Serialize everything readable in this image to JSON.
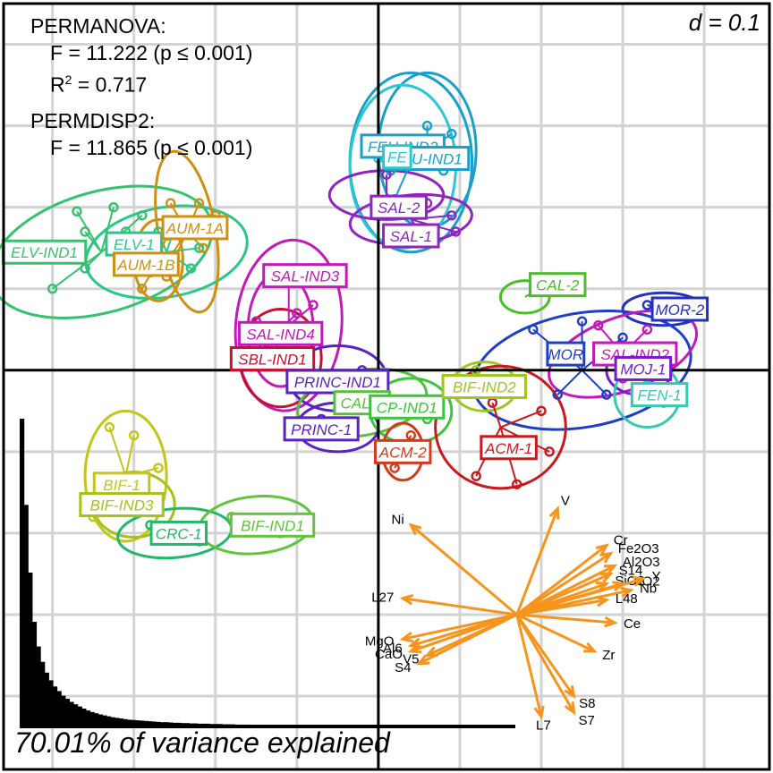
{
  "stats": {
    "permanova_title": "PERMANOVA:",
    "permanova_f": "F = 11.222 (p ≤ 0.001)",
    "r2_label": "R",
    "r2_sup": "2",
    "r2_value": " = 0.717",
    "permdisp_title": "PERMDISP2:",
    "permdisp_f": "F = 11.865 (p ≤ 0.001)"
  },
  "scale_label": "d = 0.1",
  "variance_label": "70.01% of variance explained",
  "chart_data": {
    "type": "scatter",
    "title": "",
    "xlabel": "",
    "ylabel": "",
    "xlim": [
      -0.46,
      0.48
    ],
    "ylim": [
      -0.49,
      0.45
    ],
    "grid": true,
    "grid_step": 0.1,
    "groups": [
      {
        "name": "ELV-IND1",
        "color": "#33c36c",
        "label_pos": [
          -0.41,
          0.145
        ],
        "centroid": [
          -0.34,
          0.145
        ],
        "ellipse": {
          "rx": 0.14,
          "ry": 0.074,
          "angle": -16
        },
        "points": [
          [
            -0.37,
            0.195
          ],
          [
            -0.36,
            0.17
          ],
          [
            -0.31,
            0.17
          ],
          [
            -0.29,
            0.19
          ],
          [
            -0.325,
            0.2
          ],
          [
            -0.36,
            0.125
          ],
          [
            -0.4,
            0.1
          ]
        ]
      },
      {
        "name": "ELV-1",
        "color": "#29c78a",
        "label_pos": [
          -0.3,
          0.155
        ],
        "centroid": [
          -0.26,
          0.145
        ],
        "ellipse": {
          "rx": 0.1,
          "ry": 0.055,
          "angle": -10
        },
        "points": [
          [
            -0.27,
            0.17
          ],
          [
            -0.25,
            0.175
          ],
          [
            -0.22,
            0.15
          ],
          [
            -0.23,
            0.125
          ],
          [
            -0.28,
            0.12
          ]
        ]
      },
      {
        "name": "AUM-1A",
        "color": "#cf8f10",
        "label_pos": [
          -0.225,
          0.175
        ],
        "centroid": [
          -0.235,
          0.17
        ],
        "ellipse": {
          "rx": 0.035,
          "ry": 0.1,
          "angle": -10
        },
        "points": [
          [
            -0.255,
            0.205
          ],
          [
            -0.22,
            0.205
          ],
          [
            -0.2,
            0.19
          ],
          [
            -0.215,
            0.15
          ],
          [
            -0.255,
            0.14
          ],
          [
            -0.26,
            0.115
          ]
        ]
      },
      {
        "name": "AUM-1B",
        "color": "#cf8f10",
        "label_pos": [
          -0.285,
          0.13
        ],
        "centroid": [
          -0.27,
          0.135
        ],
        "ellipse": {
          "rx": 0.03,
          "ry": 0.05,
          "angle": 0
        },
        "points": [
          [
            -0.29,
            0.16
          ],
          [
            -0.26,
            0.165
          ],
          [
            -0.29,
            0.1
          ]
        ]
      },
      {
        "name": "FEU-IND2",
        "color": "#1aa0c8",
        "label_pos": [
          0.03,
          0.275
        ],
        "centroid": [
          0.06,
          0.27
        ],
        "ellipse": {
          "rx": 0.06,
          "ry": 0.095,
          "angle": 0
        },
        "points": [
          [
            0.015,
            0.245
          ],
          [
            0.06,
            0.3
          ],
          [
            0.09,
            0.29
          ],
          [
            0.08,
            0.245
          ]
        ]
      },
      {
        "name": "FEU-IND1",
        "color": "#1aa0c8",
        "label_pos": [
          0.06,
          0.26
        ],
        "centroid": [
          0.04,
          0.255
        ],
        "ellipse": {
          "rx": 0.075,
          "ry": 0.11,
          "angle": 0
        },
        "points": [
          [
            0.015,
            0.245
          ],
          [
            0.07,
            0.28
          ],
          [
            0.02,
            0.21
          ]
        ]
      },
      {
        "name": "FE",
        "color": "#2bc8d4",
        "label_pos": [
          0.023,
          0.262
        ],
        "centroid": [
          0.03,
          0.25
        ],
        "ellipse": {
          "rx": 0.065,
          "ry": 0.1,
          "angle": 0
        },
        "points": [
          [
            0.0,
            0.26
          ],
          [
            0.05,
            0.26
          ]
        ]
      },
      {
        "name": "SAL-2",
        "color": "#8f24c0",
        "label_pos": [
          0.025,
          0.2
        ],
        "centroid": [
          0.01,
          0.215
        ],
        "ellipse": {
          "rx": 0.07,
          "ry": 0.03,
          "angle": 0
        },
        "points": [
          [
            0.01,
            0.24
          ],
          [
            0.04,
            0.205
          ],
          [
            0.06,
            0.205
          ]
        ]
      },
      {
        "name": "SAL-1",
        "color": "#8f24c0",
        "label_pos": [
          0.04,
          0.165
        ],
        "centroid": [
          0.04,
          0.185
        ],
        "ellipse": {
          "rx": 0.075,
          "ry": 0.03,
          "angle": -5
        },
        "points": [
          [
            0.05,
            0.205
          ],
          [
            0.09,
            0.19
          ],
          [
            0.095,
            0.17
          ],
          [
            0.06,
            0.16
          ]
        ]
      },
      {
        "name": "SAL-IND3",
        "color": "#c21ab8",
        "label_pos": [
          -0.09,
          0.116
        ],
        "centroid": [
          -0.11,
          0.055
        ],
        "ellipse": {
          "rx": 0.065,
          "ry": 0.105,
          "angle": 5
        },
        "points": [
          [
            -0.11,
            0.12
          ],
          [
            -0.08,
            0.08
          ],
          [
            -0.13,
            0.02
          ]
        ]
      },
      {
        "name": "CAL-2",
        "color": "#4abe2a",
        "label_pos": [
          0.22,
          0.105
        ],
        "centroid": [
          0.18,
          0.09
        ],
        "ellipse": {
          "rx": 0.03,
          "ry": 0.02,
          "angle": 0
        },
        "points": [
          [
            0.2,
            0.1
          ]
        ]
      },
      {
        "name": "MOR-2",
        "color": "#2330c0",
        "label_pos": [
          0.37,
          0.075
        ],
        "centroid": [
          0.35,
          0.075
        ],
        "ellipse": {
          "rx": 0.05,
          "ry": 0.02,
          "angle": 0
        },
        "points": [
          [
            0.33,
            0.08
          ],
          [
            0.37,
            0.08
          ]
        ]
      },
      {
        "name": "MOR",
        "color": "#1f3ec8",
        "label_pos": [
          0.23,
          0.02
        ],
        "centroid": [
          0.25,
          0.0
        ],
        "ellipse": {
          "rx": 0.135,
          "ry": 0.07,
          "angle": -10
        },
        "points": [
          [
            0.19,
            0.05
          ],
          [
            0.25,
            0.06
          ],
          [
            0.3,
            0.04
          ],
          [
            0.33,
            0.0
          ],
          [
            0.28,
            -0.03
          ],
          [
            0.22,
            -0.03
          ]
        ]
      },
      {
        "name": "SAL-IND2",
        "color": "#c21ab8",
        "label_pos": [
          0.315,
          0.02
        ],
        "centroid": [
          0.3,
          0.02
        ],
        "ellipse": {
          "rx": 0.095,
          "ry": 0.045,
          "angle": -20
        },
        "points": [
          [
            0.27,
            0.055
          ],
          [
            0.33,
            0.05
          ],
          [
            0.36,
            0.02
          ],
          [
            0.3,
            -0.01
          ]
        ]
      },
      {
        "name": "MOJ-1",
        "color": "#7a1ad0",
        "label_pos": [
          0.325,
          0.002
        ],
        "centroid": [
          0.32,
          0.0
        ],
        "ellipse": {
          "rx": 0.04,
          "ry": 0.03,
          "angle": 0
        },
        "points": [
          [
            0.33,
            0.02
          ]
        ]
      },
      {
        "name": "FEN-1",
        "color": "#36c8b4",
        "label_pos": [
          0.345,
          -0.03
        ],
        "centroid": [
          0.33,
          -0.03
        ],
        "ellipse": {
          "rx": 0.04,
          "ry": 0.04,
          "angle": 0
        },
        "points": [
          [
            0.33,
            -0.01
          ],
          [
            0.35,
            -0.04
          ]
        ]
      },
      {
        "name": "SAL-IND4",
        "color": "#c21ab8",
        "label_pos": [
          -0.12,
          0.045
        ],
        "centroid": [
          -0.12,
          0.05
        ],
        "ellipse": {
          "rx": 0.04,
          "ry": 0.07,
          "angle": 0
        },
        "points": [
          [
            -0.15,
            0.06
          ],
          [
            -0.1,
            0.07
          ]
        ]
      },
      {
        "name": "SBL-IND1",
        "color": "#c8102e",
        "label_pos": [
          -0.13,
          0.014
        ],
        "centroid": [
          -0.12,
          0.015
        ],
        "ellipse": {
          "rx": 0.05,
          "ry": 0.06,
          "angle": 0
        },
        "points": [
          [
            -0.14,
            0.03
          ],
          [
            -0.1,
            0.0
          ]
        ]
      },
      {
        "name": "PRINC-IND1",
        "color": "#5a22c4",
        "label_pos": [
          -0.05,
          -0.014
        ],
        "centroid": [
          -0.05,
          -0.01
        ],
        "ellipse": {
          "rx": 0.06,
          "ry": 0.04,
          "angle": 0
        },
        "points": [
          [
            -0.08,
            -0.02
          ],
          [
            -0.02,
            0.0
          ]
        ]
      },
      {
        "name": "CAL-1",
        "color": "#55c23a",
        "label_pos": [
          -0.02,
          -0.04
        ],
        "centroid": [
          -0.02,
          -0.04
        ],
        "ellipse": {
          "rx": 0.08,
          "ry": 0.04,
          "angle": -10
        },
        "points": [
          [
            -0.04,
            -0.03
          ],
          [
            0.02,
            -0.05
          ]
        ]
      },
      {
        "name": "PRINC-1",
        "color": "#5a22c4",
        "label_pos": [
          -0.07,
          -0.072
        ],
        "centroid": [
          -0.05,
          -0.07
        ],
        "ellipse": {
          "rx": 0.05,
          "ry": 0.03,
          "angle": 0
        },
        "points": [
          [
            -0.07,
            -0.06
          ],
          [
            -0.03,
            -0.08
          ]
        ]
      },
      {
        "name": "CP-IND1",
        "color": "#3cc43c",
        "label_pos": [
          0.035,
          -0.045
        ],
        "centroid": [
          0.04,
          -0.05
        ],
        "ellipse": {
          "rx": 0.05,
          "ry": 0.04,
          "angle": 0
        },
        "points": [
          [
            0.02,
            -0.04
          ],
          [
            0.06,
            -0.06
          ]
        ]
      },
      {
        "name": "BIF-IND2",
        "color": "#9cc820",
        "label_pos": [
          0.13,
          -0.02
        ],
        "centroid": [
          0.13,
          -0.02
        ],
        "ellipse": {
          "rx": 0.04,
          "ry": 0.03,
          "angle": 0
        },
        "points": [
          [
            0.12,
            0.0
          ]
        ]
      },
      {
        "name": "ACM-2",
        "color": "#d23a1a",
        "label_pos": [
          0.03,
          -0.1
        ],
        "centroid": [
          0.03,
          -0.1
        ],
        "ellipse": {
          "rx": 0.025,
          "ry": 0.035,
          "angle": 0
        },
        "points": [
          [
            0.02,
            -0.12
          ],
          [
            0.04,
            -0.08
          ]
        ]
      },
      {
        "name": "ACM-1",
        "color": "#c81a1a",
        "label_pos": [
          0.16,
          -0.095
        ],
        "centroid": [
          0.15,
          -0.07
        ],
        "ellipse": {
          "rx": 0.08,
          "ry": 0.075,
          "angle": 0
        },
        "points": [
          [
            0.14,
            -0.04
          ],
          [
            0.2,
            -0.05
          ],
          [
            0.21,
            -0.1
          ],
          [
            0.17,
            -0.14
          ],
          [
            0.12,
            -0.13
          ]
        ]
      },
      {
        "name": "BIF-1",
        "color": "#c4c41a",
        "label_pos": [
          -0.315,
          -0.14
        ],
        "centroid": [
          -0.31,
          -0.13
        ],
        "ellipse": {
          "rx": 0.05,
          "ry": 0.08,
          "angle": 0
        },
        "points": [
          [
            -0.33,
            -0.07
          ],
          [
            -0.3,
            -0.08
          ],
          [
            -0.27,
            -0.12
          ],
          [
            -0.35,
            -0.18
          ]
        ]
      },
      {
        "name": "BIF-IND3",
        "color": "#a6c21a",
        "label_pos": [
          -0.315,
          -0.165
        ],
        "centroid": [
          -0.3,
          -0.165
        ],
        "ellipse": {
          "rx": 0.05,
          "ry": 0.04,
          "angle": 0
        },
        "points": [
          [
            -0.33,
            -0.15
          ],
          [
            -0.28,
            -0.17
          ]
        ]
      },
      {
        "name": "CRC-1",
        "color": "#20b86a",
        "label_pos": [
          -0.245,
          -0.2
        ],
        "centroid": [
          -0.25,
          -0.2
        ],
        "ellipse": {
          "rx": 0.07,
          "ry": 0.03,
          "angle": -5
        },
        "points": [
          [
            -0.28,
            -0.19
          ],
          [
            -0.22,
            -0.21
          ]
        ]
      },
      {
        "name": "BIF-IND1",
        "color": "#62c43a",
        "label_pos": [
          -0.13,
          -0.19
        ],
        "centroid": [
          -0.15,
          -0.19
        ],
        "ellipse": {
          "rx": 0.07,
          "ry": 0.035,
          "angle": -5
        },
        "points": [
          [
            -0.18,
            -0.18
          ],
          [
            -0.12,
            -0.2
          ]
        ]
      }
    ],
    "vectors": {
      "color": "#f7941d",
      "origin": [
        0.17,
        -0.3
      ],
      "items": [
        {
          "name": "Ni",
          "x": 0.04,
          "y": -0.19
        },
        {
          "name": "V",
          "x": 0.22,
          "y": -0.17
        },
        {
          "name": "Cr",
          "x": 0.28,
          "y": -0.215
        },
        {
          "name": "Fe2O3",
          "x": 0.285,
          "y": -0.225
        },
        {
          "name": "Al2O3",
          "x": 0.29,
          "y": -0.24
        },
        {
          "name": "S14",
          "x": 0.285,
          "y": -0.25
        },
        {
          "name": "SiO2",
          "x": 0.28,
          "y": -0.262
        },
        {
          "name": "TiO2",
          "x": 0.3,
          "y": -0.262
        },
        {
          "name": "Y",
          "x": 0.325,
          "y": -0.256
        },
        {
          "name": "Nb",
          "x": 0.31,
          "y": -0.27
        },
        {
          "name": "L48",
          "x": 0.28,
          "y": -0.282
        },
        {
          "name": "Ce",
          "x": 0.29,
          "y": -0.31
        },
        {
          "name": "Zr",
          "x": 0.265,
          "y": -0.345
        },
        {
          "name": "S8",
          "x": 0.24,
          "y": -0.4
        },
        {
          "name": "S7",
          "x": 0.24,
          "y": -0.42
        },
        {
          "name": "L7",
          "x": 0.2,
          "y": -0.425
        },
        {
          "name": "L27",
          "x": 0.03,
          "y": -0.28
        },
        {
          "name": "MgO",
          "x": 0.03,
          "y": -0.33
        },
        {
          "name": "Al6",
          "x": 0.04,
          "y": -0.338
        },
        {
          "name": "CaO",
          "x": 0.04,
          "y": -0.345
        },
        {
          "name": "V5",
          "x": 0.06,
          "y": -0.35
        },
        {
          "name": "S4",
          "x": 0.05,
          "y": -0.36
        }
      ]
    },
    "scree": {
      "type": "bar",
      "values": [
        1.0,
        0.72,
        0.5,
        0.34,
        0.26,
        0.21,
        0.175,
        0.15,
        0.13,
        0.115,
        0.1,
        0.09,
        0.08,
        0.072,
        0.065,
        0.058,
        0.052,
        0.047,
        0.043,
        0.039,
        0.036,
        0.033,
        0.03,
        0.028,
        0.026,
        0.024,
        0.022,
        0.021,
        0.02,
        0.019,
        0.018,
        0.017,
        0.016,
        0.015,
        0.014,
        0.014,
        0.013,
        0.012,
        0.012,
        0.011,
        0.011,
        0.01,
        0.01,
        0.009,
        0.009,
        0.009,
        0.008,
        0.008,
        0.008,
        0.007,
        0.007,
        0.007,
        0.006,
        0.006,
        0.006,
        0.006,
        0.005,
        0.005,
        0.005,
        0.005
      ]
    }
  }
}
